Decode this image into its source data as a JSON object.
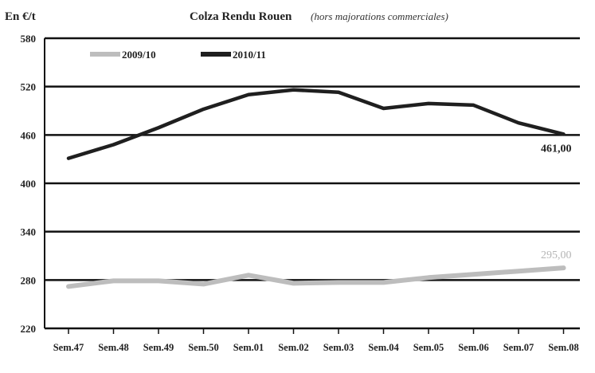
{
  "chart_data": {
    "type": "line",
    "title": "Colza Rendu Rouen",
    "subtitle": "(hors majorations commerciales)",
    "ylabel": "En €/t",
    "ylim": [
      220,
      580
    ],
    "yticks": [
      "580",
      "520",
      "460",
      "400",
      "340",
      "280",
      "220"
    ],
    "ytick_values": [
      580,
      520,
      460,
      400,
      340,
      280,
      220
    ],
    "categories": [
      "Sem.47",
      "Sem.48",
      "Sem.49",
      "Sem.50",
      "Sem.01",
      "Sem.02",
      "Sem.03",
      "Sem.04",
      "Sem.05",
      "Sem.06",
      "Sem.07",
      "Sem.08"
    ],
    "grid": true,
    "legend_position": "top-left",
    "series": [
      {
        "name": "2009/10",
        "color": "#bdbdbd",
        "values": [
          272,
          279,
          279,
          275,
          286,
          276,
          277,
          277,
          283,
          287,
          291,
          295
        ],
        "end_label": "295,00"
      },
      {
        "name": "2010/11",
        "color": "#1f1f1f",
        "values": [
          431,
          448,
          469,
          492,
          510,
          516,
          513,
          493,
          499,
          497,
          475,
          461
        ],
        "end_label": "461,00"
      }
    ]
  }
}
